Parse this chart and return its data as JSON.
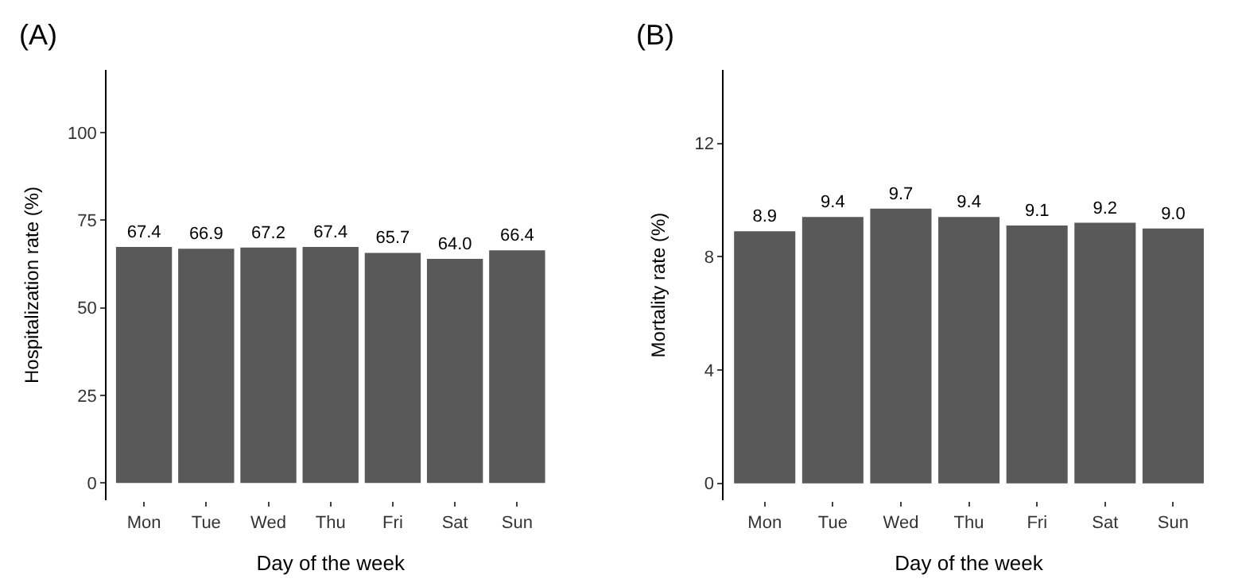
{
  "chart_data": [
    {
      "type": "bar",
      "title": "(A)",
      "xlabel": "Day of the week",
      "ylabel": "Hospitalization rate (%)",
      "categories": [
        "Mon",
        "Tue",
        "Wed",
        "Thu",
        "Fri",
        "Sat",
        "Sun"
      ],
      "values": [
        67.4,
        66.9,
        67.2,
        67.4,
        65.7,
        64.0,
        66.4
      ],
      "color": "#595959",
      "value_labels": [
        "67.4",
        "66.9",
        "67.2",
        "67.4",
        "65.7",
        "64.0",
        "66.4"
      ],
      "ylim": [
        -5,
        118
      ],
      "yticks": [
        0,
        25,
        50,
        75,
        100
      ]
    },
    {
      "type": "bar",
      "title": "(B)",
      "xlabel": "Day of the week",
      "ylabel": "Mortality rate (%)",
      "categories": [
        "Mon",
        "Tue",
        "Wed",
        "Thu",
        "Fri",
        "Sat",
        "Sun"
      ],
      "values": [
        8.9,
        9.4,
        9.7,
        9.4,
        9.1,
        9.2,
        9.0
      ],
      "color": "#595959",
      "value_labels": [
        "8.9",
        "9.4",
        "9.7",
        "9.4",
        "9.1",
        "9.2",
        "9.0"
      ],
      "ylim": [
        -0.6,
        14.6
      ],
      "yticks": [
        0,
        4,
        8,
        12
      ]
    }
  ]
}
